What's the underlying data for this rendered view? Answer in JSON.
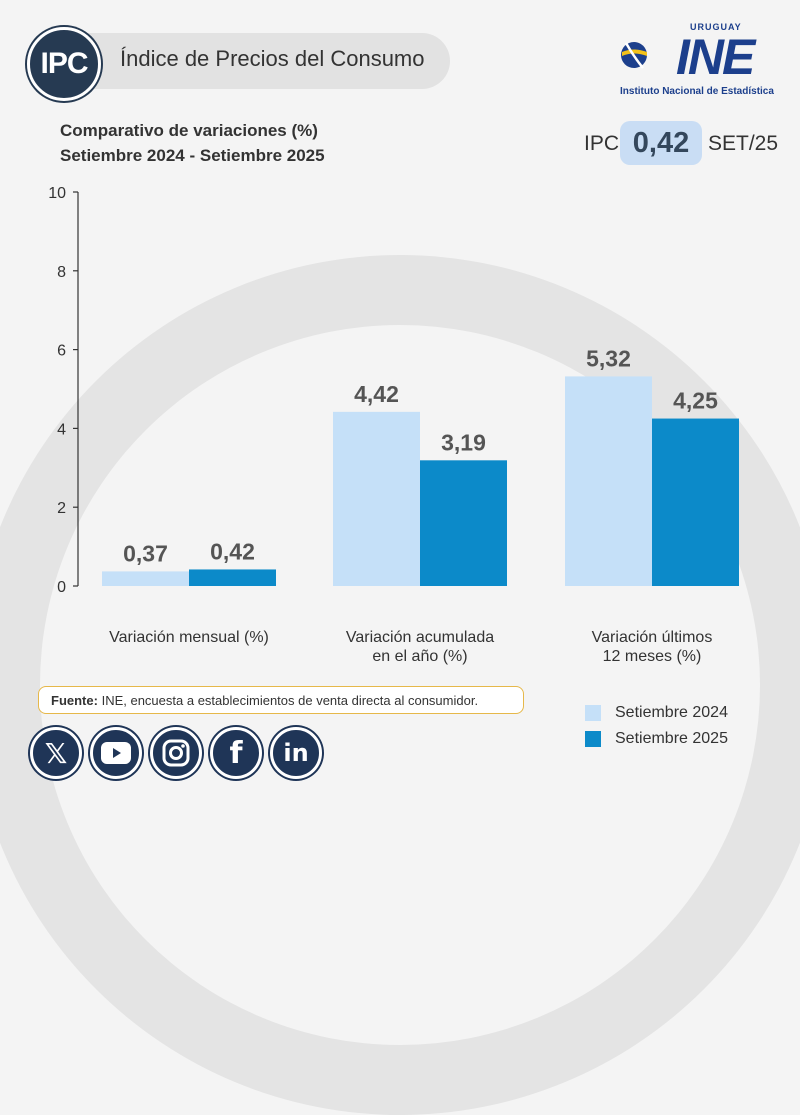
{
  "header": {
    "badge": "IPC",
    "title": "Índice de Precios del Consumo"
  },
  "logo": {
    "top_text": "URUGUAY",
    "main_text": "INE",
    "sub_text": "Instituto Nacional de Estadística"
  },
  "subtitle": {
    "line1": "Comparativo de variaciones (%)",
    "line2": "Setiembre 2024 - Setiembre 2025"
  },
  "ipc_summary": {
    "label": "IPC",
    "value": "0,42",
    "period": "SET/25"
  },
  "chart_data": {
    "type": "bar",
    "categories": [
      "Variación mensual (%)",
      "Variación acumulada en el año (%)",
      "Variación últimos 12 meses (%)"
    ],
    "category_lines": [
      [
        "Variación mensual (%)"
      ],
      [
        "Variación acumulada",
        "en el año (%)"
      ],
      [
        "Variación últimos",
        "12 meses (%)"
      ]
    ],
    "series": [
      {
        "name": "Setiembre 2024",
        "values": [
          0.37,
          4.42,
          5.32
        ],
        "labels": [
          "0,37",
          "4,42",
          "5,32"
        ],
        "color": "#c5e0f8"
      },
      {
        "name": "Setiembre 2025",
        "values": [
          0.42,
          3.19,
          4.25
        ],
        "labels": [
          "0,42",
          "3,19",
          "4,25"
        ],
        "color": "#0c8ac9"
      }
    ],
    "yticks": [
      "0",
      "2",
      "4",
      "6",
      "8",
      "10"
    ],
    "ylim": [
      0,
      10
    ],
    "legend_position": "bottom-right"
  },
  "source": {
    "label": "Fuente:",
    "text": "INE, encuesta a establecimientos de venta directa al consumidor."
  },
  "social": [
    {
      "name": "x-icon",
      "glyph": "X"
    },
    {
      "name": "youtube-icon",
      "glyph": "▶"
    },
    {
      "name": "instagram-icon",
      "glyph": "◎"
    },
    {
      "name": "facebook-icon",
      "glyph": "f"
    },
    {
      "name": "linkedin-icon",
      "glyph": "in"
    }
  ]
}
